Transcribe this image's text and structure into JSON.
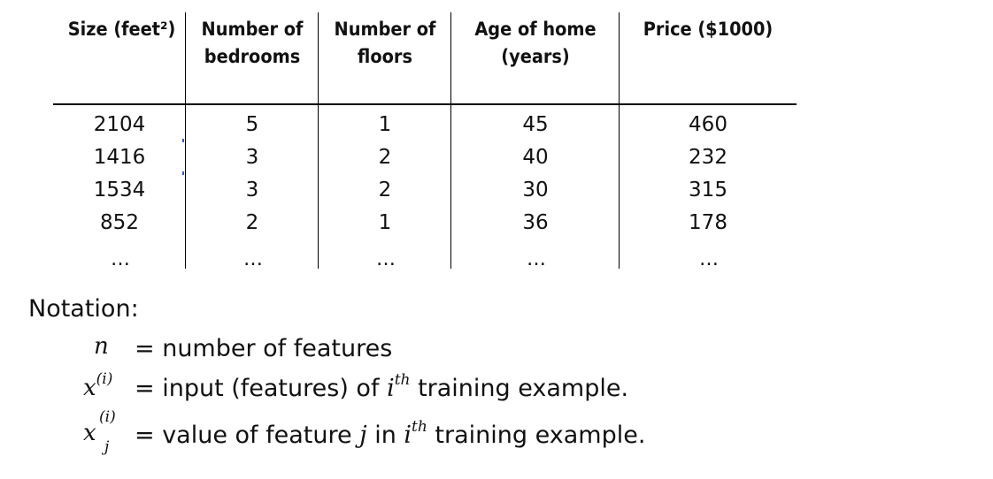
{
  "table": {
    "headers": [
      {
        "line1": "Size (feet²)",
        "line2": ""
      },
      {
        "line1": "Number of",
        "line2": "bedrooms"
      },
      {
        "line1": "Number of",
        "line2": "floors"
      },
      {
        "line1": "Age of home",
        "line2": "(years)"
      },
      {
        "line1": "Price ($1000)",
        "line2": ""
      }
    ],
    "rows": [
      [
        "2104",
        "5",
        "1",
        "45",
        "460"
      ],
      [
        "1416",
        "3",
        "2",
        "40",
        "232"
      ],
      [
        "1534",
        "3",
        "2",
        "30",
        "315"
      ],
      [
        "852",
        "2",
        "1",
        "36",
        "178"
      ]
    ],
    "ellipsis": [
      "…",
      "…",
      "…",
      "…",
      "…"
    ]
  },
  "notation": {
    "title": "Notation:",
    "items": [
      {
        "symbol": "n",
        "text": "= number of features"
      },
      {
        "symbol_base": "x",
        "symbol_sup": "(i)",
        "text_before": "= input (features) of",
        "var": "i",
        "var_sup": "th",
        "text_after": "training example."
      },
      {
        "symbol_base": "x",
        "symbol_sup": "(i)",
        "symbol_sub": "j",
        "text_before": "= value of feature",
        "var1": "j",
        "mid": "in",
        "var2": "i",
        "var2_sup": "th",
        "text_after": "training example."
      }
    ]
  }
}
